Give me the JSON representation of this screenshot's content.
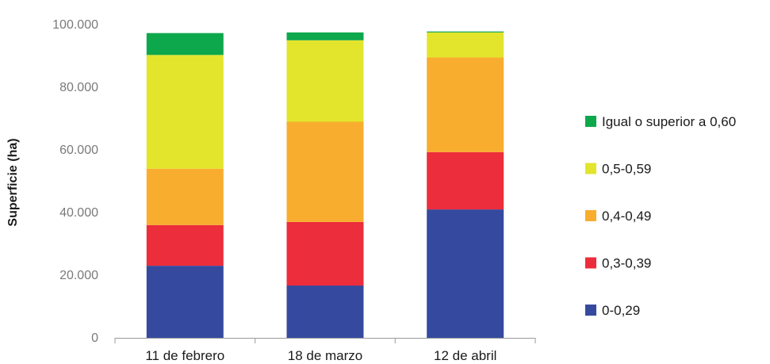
{
  "chart_data": {
    "type": "bar",
    "stacked": true,
    "title": "",
    "xlabel": "",
    "ylabel": "Superficie (ha)",
    "ylim": [
      0,
      100000
    ],
    "yticks": [
      0,
      20000,
      40000,
      60000,
      80000,
      100000
    ],
    "ytick_labels": [
      "0",
      "20.000",
      "40.000",
      "60.000",
      "80.000",
      "100.000"
    ],
    "categories": [
      "11 de febrero",
      "18 de marzo",
      "12 de abril"
    ],
    "series": [
      {
        "name": "0-0,29",
        "color": "#354a9f",
        "values": [
          23000,
          16700,
          41000
        ]
      },
      {
        "name": "0,3-0,39",
        "color": "#ec2d3b",
        "values": [
          13000,
          20300,
          18300
        ]
      },
      {
        "name": "0,4-0,49",
        "color": "#f9ad2e",
        "values": [
          18000,
          32000,
          30200
        ]
      },
      {
        "name": "0,5-0,59",
        "color": "#e3e52c",
        "values": [
          36300,
          26000,
          8000
        ]
      },
      {
        "name": "Igual o superior a 0,60",
        "color": "#0ea84c",
        "values": [
          7000,
          2500,
          300
        ]
      }
    ],
    "legend_position": "right",
    "grid": false
  }
}
